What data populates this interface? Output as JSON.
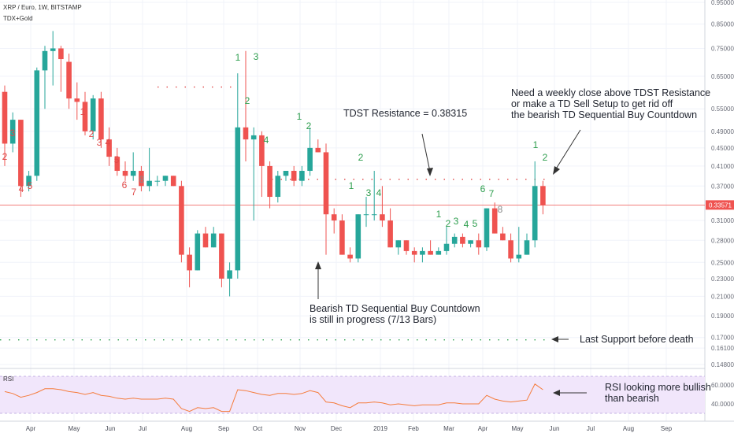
{
  "header": {
    "symbol": "XRP / Euro, 1W, BITSTAMP",
    "indicator": "TDX+Gold"
  },
  "rsi_label": "RSI",
  "chart_data": {
    "type": "candlestick",
    "title": "XRP / Euro, 1W, BITSTAMP",
    "y_scale": "log",
    "y_ticks": [
      "0.95000",
      "0.85000",
      "0.75000",
      "0.65000",
      "0.55000",
      "0.49000",
      "0.45000",
      "0.41000",
      "0.37000",
      "0.31000",
      "0.28000",
      "0.25000",
      "0.23000",
      "0.21000",
      "0.19000",
      "0.17000",
      "0.16100",
      "0.14800"
    ],
    "x_ticks": [
      "Apr",
      "May",
      "Jun",
      "Jul",
      "Aug",
      "Sep",
      "Oct",
      "Nov",
      "Dec",
      "2019",
      "Feb",
      "Mar",
      "Apr",
      "May",
      "Jun",
      "Jul",
      "Aug",
      "Sep"
    ],
    "last_price": {
      "label": "0.33571",
      "value": 0.3357
    },
    "candles": [
      [
        0.6,
        0.62,
        0.41,
        0.46
      ],
      [
        0.46,
        0.54,
        0.44,
        0.52
      ],
      [
        0.52,
        0.52,
        0.35,
        0.37
      ],
      [
        0.37,
        0.4,
        0.36,
        0.39
      ],
      [
        0.39,
        0.68,
        0.38,
        0.67
      ],
      [
        0.67,
        0.76,
        0.55,
        0.74
      ],
      [
        0.74,
        0.82,
        0.62,
        0.75
      ],
      [
        0.75,
        0.76,
        0.6,
        0.71
      ],
      [
        0.7,
        0.73,
        0.55,
        0.58
      ],
      [
        0.58,
        0.63,
        0.52,
        0.57
      ],
      [
        0.57,
        0.6,
        0.48,
        0.49
      ],
      [
        0.49,
        0.59,
        0.47,
        0.58
      ],
      [
        0.58,
        0.6,
        0.45,
        0.47
      ],
      [
        0.47,
        0.5,
        0.41,
        0.43
      ],
      [
        0.43,
        0.45,
        0.39,
        0.4
      ],
      [
        0.4,
        0.42,
        0.38,
        0.39
      ],
      [
        0.39,
        0.44,
        0.38,
        0.4
      ],
      [
        0.4,
        0.41,
        0.36,
        0.37
      ],
      [
        0.37,
        0.45,
        0.36,
        0.38
      ],
      [
        0.38,
        0.39,
        0.37,
        0.38
      ],
      [
        0.38,
        0.39,
        0.37,
        0.39
      ],
      [
        0.39,
        0.39,
        0.37,
        0.37
      ],
      [
        0.37,
        0.38,
        0.25,
        0.26
      ],
      [
        0.26,
        0.27,
        0.22,
        0.24
      ],
      [
        0.24,
        0.295,
        0.24,
        0.29
      ],
      [
        0.29,
        0.3,
        0.27,
        0.27
      ],
      [
        0.27,
        0.3,
        0.27,
        0.29
      ],
      [
        0.29,
        0.29,
        0.22,
        0.23
      ],
      [
        0.23,
        0.25,
        0.21,
        0.24
      ],
      [
        0.24,
        0.66,
        0.23,
        0.5
      ],
      [
        0.5,
        0.74,
        0.42,
        0.47
      ],
      [
        0.47,
        0.5,
        0.31,
        0.48
      ],
      [
        0.48,
        0.49,
        0.35,
        0.41
      ],
      [
        0.41,
        0.42,
        0.33,
        0.35
      ],
      [
        0.35,
        0.4,
        0.34,
        0.39
      ],
      [
        0.39,
        0.4,
        0.38,
        0.4
      ],
      [
        0.4,
        0.41,
        0.37,
        0.38
      ],
      [
        0.38,
        0.41,
        0.37,
        0.4
      ],
      [
        0.4,
        0.5,
        0.39,
        0.45
      ],
      [
        0.45,
        0.47,
        0.44,
        0.44
      ],
      [
        0.44,
        0.46,
        0.26,
        0.32
      ],
      [
        0.32,
        0.33,
        0.29,
        0.31
      ],
      [
        0.31,
        0.32,
        0.26,
        0.26
      ],
      [
        0.26,
        0.27,
        0.25,
        0.255
      ],
      [
        0.255,
        0.32,
        0.25,
        0.32
      ],
      [
        0.32,
        0.35,
        0.3,
        0.32
      ],
      [
        0.32,
        0.4,
        0.31,
        0.32
      ],
      [
        0.32,
        0.37,
        0.3,
        0.31
      ],
      [
        0.31,
        0.33,
        0.27,
        0.27
      ],
      [
        0.27,
        0.28,
        0.26,
        0.28
      ],
      [
        0.28,
        0.28,
        0.26,
        0.265
      ],
      [
        0.265,
        0.27,
        0.25,
        0.26
      ],
      [
        0.26,
        0.27,
        0.25,
        0.265
      ],
      [
        0.265,
        0.28,
        0.26,
        0.26
      ],
      [
        0.26,
        0.27,
        0.26,
        0.265
      ],
      [
        0.265,
        0.3,
        0.26,
        0.275
      ],
      [
        0.275,
        0.29,
        0.27,
        0.285
      ],
      [
        0.285,
        0.29,
        0.27,
        0.275
      ],
      [
        0.275,
        0.28,
        0.27,
        0.28
      ],
      [
        0.28,
        0.29,
        0.26,
        0.27
      ],
      [
        0.27,
        0.33,
        0.265,
        0.33
      ],
      [
        0.33,
        0.34,
        0.29,
        0.29
      ],
      [
        0.29,
        0.3,
        0.28,
        0.28
      ],
      [
        0.28,
        0.29,
        0.25,
        0.255
      ],
      [
        0.255,
        0.3,
        0.25,
        0.26
      ],
      [
        0.26,
        0.29,
        0.26,
        0.28
      ],
      [
        0.28,
        0.42,
        0.27,
        0.37
      ],
      [
        0.37,
        0.38,
        0.32,
        0.335
      ]
    ],
    "levels": [
      {
        "name": "TDST Resistance",
        "value": 0.38315,
        "color": "#e04848",
        "style": "dotted"
      },
      {
        "name": "Last Support",
        "value": 0.168,
        "color": "#2e9e4e",
        "style": "dotted"
      },
      {
        "name": "Earlier TDST",
        "value": 0.615,
        "color": "#e04848",
        "style": "dotted"
      }
    ],
    "rsi": {
      "ticks": [
        "60.0000",
        "40.0000"
      ],
      "values": [
        53,
        51,
        47,
        49,
        52,
        56,
        56,
        55,
        53,
        52,
        50,
        52,
        49,
        48,
        46,
        45,
        46,
        45,
        45,
        45,
        46,
        45,
        35,
        32,
        36,
        35,
        36,
        32,
        32,
        55,
        54,
        52,
        50,
        49,
        51,
        51,
        50,
        51,
        54,
        52,
        42,
        41,
        38,
        36,
        41,
        41,
        42,
        41,
        39,
        40,
        39,
        38,
        39,
        39,
        39,
        41,
        41,
        40,
        40,
        40,
        49,
        45,
        43,
        42,
        43,
        44,
        61,
        55
      ]
    }
  },
  "td_labels": [
    {
      "text": "2",
      "color": "red"
    },
    {
      "text": "3",
      "color": "red"
    },
    {
      "text": "4",
      "color": "red"
    },
    {
      "text": "5",
      "color": "red"
    },
    {
      "text": "1",
      "color": "red"
    },
    {
      "text": "2",
      "color": "red"
    },
    {
      "text": "3",
      "color": "red"
    },
    {
      "text": "4",
      "color": "red"
    },
    {
      "text": "5",
      "color": "red"
    },
    {
      "text": "6",
      "color": "red"
    },
    {
      "text": "7",
      "color": "red"
    },
    {
      "text": "8",
      "color": "gray"
    },
    {
      "text": "1",
      "color": "green"
    },
    {
      "text": "3",
      "color": "green"
    },
    {
      "text": "2",
      "color": "green"
    },
    {
      "text": "4",
      "color": "green"
    },
    {
      "text": "1",
      "color": "green"
    },
    {
      "text": "2",
      "color": "green"
    },
    {
      "text": "1",
      "color": "green"
    },
    {
      "text": "2",
      "color": "green"
    },
    {
      "text": "3",
      "color": "green"
    },
    {
      "text": "4",
      "color": "green"
    },
    {
      "text": "1",
      "color": "green"
    },
    {
      "text": "2",
      "color": "green"
    },
    {
      "text": "3",
      "color": "green"
    },
    {
      "text": "4",
      "color": "green"
    },
    {
      "text": "5",
      "color": "green"
    },
    {
      "text": "6",
      "color": "green"
    },
    {
      "text": "7",
      "color": "green"
    },
    {
      "text": "8",
      "color": "gray"
    },
    {
      "text": "1",
      "color": "green"
    },
    {
      "text": "2",
      "color": "green"
    }
  ],
  "annotations": {
    "tdst": "TDST Resistance = 0.38315",
    "weekly_close_1": "Need a weekly close above TDST Resistance",
    "weekly_close_2": "or make a TD Sell Setup to get rid off",
    "weekly_close_3": "the bearish TD Sequential Buy Countdown",
    "bearish_1": "Bearish TD Sequential Buy Countdown",
    "bearish_2": "is still in progress (7/13 Bars)",
    "support": "Last Support before death",
    "rsi_1": "RSI looking more bullish",
    "rsi_2": "than bearish"
  },
  "colors": {
    "up": "#26a69a",
    "down": "#ef5350",
    "rsi_line": "#f57c3c",
    "rsi_band": "#f1e6fb"
  }
}
